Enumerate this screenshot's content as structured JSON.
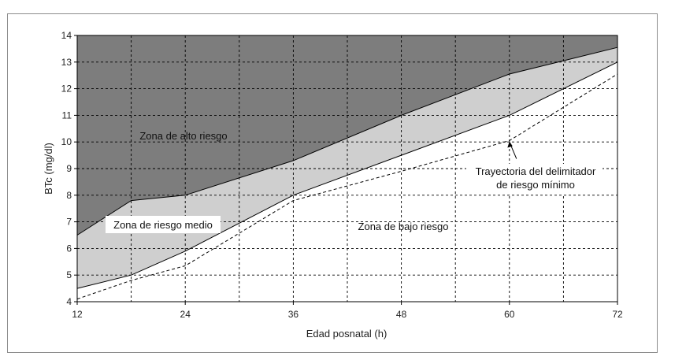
{
  "chart_data": {
    "type": "area",
    "xlabel": "Edad posnatal (h)",
    "ylabel": "BTc (mg/dl)",
    "xlim": [
      12,
      72
    ],
    "ylim": [
      4,
      14
    ],
    "x_ticks": [
      12,
      24,
      36,
      48,
      60,
      72
    ],
    "x_ticks_minor": [
      18,
      30,
      42,
      54,
      66
    ],
    "y_ticks": [
      4,
      5,
      6,
      7,
      8,
      9,
      10,
      11,
      12,
      13,
      14
    ],
    "grid": true,
    "series": [
      {
        "role": "upper-boundary",
        "x": [
          12,
          18,
          24,
          36,
          48,
          60,
          66,
          72
        ],
        "y": [
          6.5,
          7.8,
          8.0,
          9.3,
          11.0,
          12.55,
          13.05,
          13.55
        ]
      },
      {
        "role": "lower-boundary",
        "x": [
          12,
          18,
          24,
          36,
          48,
          60,
          72
        ],
        "y": [
          4.5,
          5.0,
          5.9,
          8.0,
          9.5,
          11.0,
          13.0
        ]
      },
      {
        "role": "minimum-delimiter",
        "style": "dashed",
        "x": [
          12,
          18,
          24,
          36,
          48,
          60,
          72
        ],
        "y": [
          4.1,
          4.8,
          5.35,
          7.8,
          8.9,
          10.05,
          12.55
        ]
      }
    ],
    "zones": [
      {
        "label": "Zona de alto riesgo",
        "color": "#7d7d7d"
      },
      {
        "label": "Zona de riesgo medio",
        "color": "#cfcfcf"
      },
      {
        "label": "Zona de bajo riesgo",
        "color": "#ffffff"
      }
    ],
    "annotations": [
      {
        "lines": [
          "Trayectoria del delimitador",
          "de riesgo mínimo"
        ],
        "arrow_to": [
          60,
          10.05
        ]
      }
    ]
  }
}
